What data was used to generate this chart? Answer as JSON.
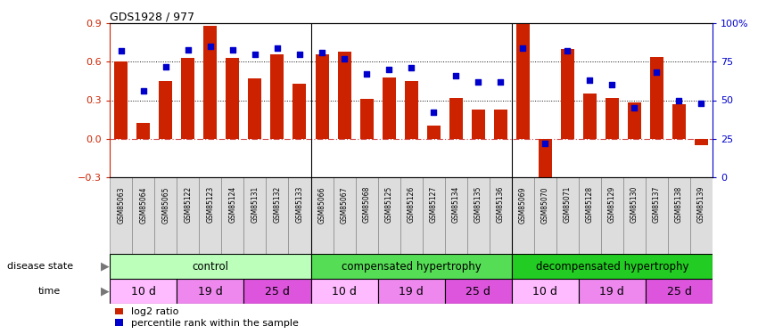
{
  "title": "GDS1928 / 977",
  "samples": [
    "GSM85063",
    "GSM85064",
    "GSM85065",
    "GSM85122",
    "GSM85123",
    "GSM85124",
    "GSM85131",
    "GSM85132",
    "GSM85133",
    "GSM85066",
    "GSM85067",
    "GSM85068",
    "GSM85125",
    "GSM85126",
    "GSM85127",
    "GSM85134",
    "GSM85135",
    "GSM85136",
    "GSM85069",
    "GSM85070",
    "GSM85071",
    "GSM85128",
    "GSM85129",
    "GSM85130",
    "GSM85137",
    "GSM85138",
    "GSM85139"
  ],
  "log2_ratio": [
    0.6,
    0.12,
    0.45,
    0.63,
    0.88,
    0.63,
    0.47,
    0.66,
    0.43,
    0.66,
    0.68,
    0.31,
    0.48,
    0.45,
    0.1,
    0.32,
    0.23,
    0.23,
    0.92,
    -0.4,
    0.7,
    0.35,
    0.32,
    0.28,
    0.64,
    0.27,
    -0.05
  ],
  "percentile": [
    82,
    56,
    72,
    83,
    85,
    83,
    80,
    84,
    80,
    81,
    77,
    67,
    70,
    71,
    42,
    66,
    62,
    62,
    84,
    22,
    82,
    63,
    60,
    45,
    68,
    50,
    48
  ],
  "ylim_left": [
    -0.3,
    0.9
  ],
  "ylim_right": [
    0,
    100
  ],
  "yticks_left": [
    -0.3,
    0.0,
    0.3,
    0.6,
    0.9
  ],
  "yticks_right": [
    0,
    25,
    50,
    75,
    100
  ],
  "hlines": [
    0.3,
    0.6
  ],
  "bar_color": "#cc2200",
  "dot_color": "#0000cc",
  "zero_line_color": "#cc4444",
  "grid_line_color": "#111111",
  "disease_groups": [
    {
      "label": "control",
      "start": 0,
      "end": 9,
      "color": "#bbffbb"
    },
    {
      "label": "compensated hypertrophy",
      "start": 9,
      "end": 18,
      "color": "#55dd55"
    },
    {
      "label": "decompensated hypertrophy",
      "start": 18,
      "end": 27,
      "color": "#22cc22"
    }
  ],
  "time_groups": [
    {
      "label": "10 d",
      "start": 0,
      "end": 3,
      "color": "#ffbbff"
    },
    {
      "label": "19 d",
      "start": 3,
      "end": 6,
      "color": "#ee88ee"
    },
    {
      "label": "25 d",
      "start": 6,
      "end": 9,
      "color": "#dd55dd"
    },
    {
      "label": "10 d",
      "start": 9,
      "end": 12,
      "color": "#ffbbff"
    },
    {
      "label": "19 d",
      "start": 12,
      "end": 15,
      "color": "#ee88ee"
    },
    {
      "label": "25 d",
      "start": 15,
      "end": 18,
      "color": "#dd55dd"
    },
    {
      "label": "10 d",
      "start": 18,
      "end": 21,
      "color": "#ffbbff"
    },
    {
      "label": "19 d",
      "start": 21,
      "end": 24,
      "color": "#ee88ee"
    },
    {
      "label": "25 d",
      "start": 24,
      "end": 27,
      "color": "#dd55dd"
    }
  ],
  "disease_state_label": "disease state",
  "time_label": "time",
  "legend_log2": "log2 ratio",
  "legend_pct": "percentile rank within the sample",
  "xtick_bg": "#dddddd"
}
